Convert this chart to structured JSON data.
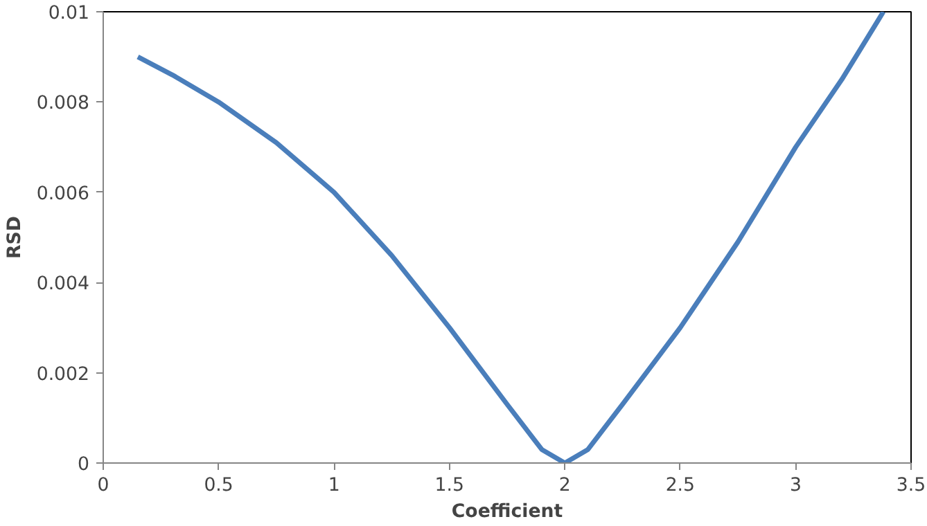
{
  "chart_data": {
    "type": "line",
    "xlabel": "Coefficient",
    "ylabel": "RSD",
    "x": [
      0.15,
      0.3,
      0.5,
      0.75,
      1,
      1.25,
      1.5,
      1.75,
      1.9,
      2,
      2.1,
      2.25,
      2.5,
      2.75,
      3,
      3.2,
      3.38
    ],
    "series": [
      {
        "color": "#4a7ebb",
        "values": [
          0.009,
          0.0086,
          0.008,
          0.0071,
          0.006,
          0.0046,
          0.003,
          0.0013,
          0.0003,
          0,
          0.0003,
          0.0013,
          0.003,
          0.0049,
          0.007,
          0.0085,
          0.01
        ]
      }
    ],
    "xlim": [
      0,
      3.5
    ],
    "xticks": [
      0,
      0.5,
      1,
      1.5,
      2,
      2.5,
      3,
      3.5
    ],
    "ylim": [
      0,
      0.01
    ],
    "yticks": [
      0,
      0.002,
      0.004,
      0.006,
      0.008,
      0.01
    ],
    "grid": false,
    "marker": "none",
    "line_style": "solid"
  }
}
